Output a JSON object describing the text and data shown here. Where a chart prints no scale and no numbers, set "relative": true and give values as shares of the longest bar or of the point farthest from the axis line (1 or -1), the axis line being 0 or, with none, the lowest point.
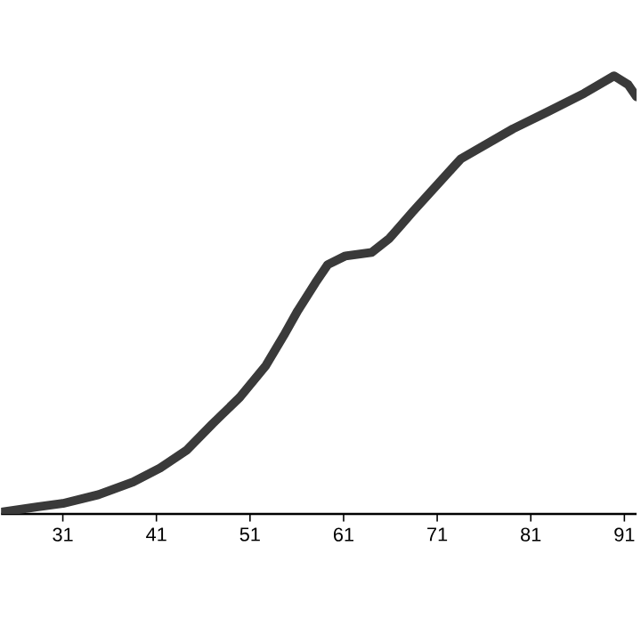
{
  "chart_data": {
    "type": "line",
    "relative": true,
    "xlim": [
      24.4,
      92.3
    ],
    "xticks": [
      31,
      41,
      51,
      61,
      71,
      81,
      91
    ],
    "marker": "none",
    "line_style": "solid",
    "series": [
      {
        "color": "#3a3a3a",
        "x": [
          24.4,
          28.2,
          31,
          34.8,
          38.5,
          41.4,
          44.2,
          47.0,
          49.9,
          52.7,
          54.6,
          56.1,
          58.0,
          59.3,
          61.2,
          64.0,
          65.9,
          68.4,
          73.5,
          79.1,
          82.9,
          86.7,
          89.9,
          91.4,
          92.3
        ],
        "values": [
          0.004,
          0.016,
          0.024,
          0.044,
          0.073,
          0.105,
          0.145,
          0.206,
          0.266,
          0.339,
          0.407,
          0.464,
          0.528,
          0.569,
          0.589,
          0.597,
          0.629,
          0.69,
          0.81,
          0.879,
          0.919,
          0.96,
          1,
          0.98,
          0.952
        ]
      }
    ]
  }
}
